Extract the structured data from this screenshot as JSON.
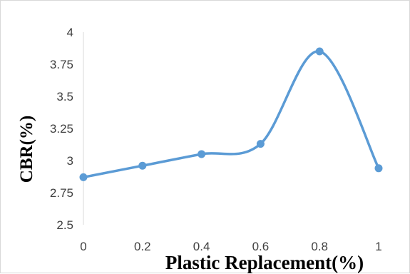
{
  "chart_data": {
    "type": "line",
    "smooth": true,
    "title": "",
    "xlabel": "Plastic Replacement(%)",
    "ylabel": "CBR(%)",
    "x": [
      0,
      0.2,
      0.4,
      0.6,
      0.8,
      1
    ],
    "x_tick_labels": [
      "0",
      "0.2",
      "0.4",
      "0.6",
      "0.8",
      "1"
    ],
    "xlim": [
      0,
      1
    ],
    "y_tick_labels": [
      "2.5",
      "2.75",
      "3",
      "3.25",
      "3.5",
      "3.75",
      "4"
    ],
    "ylim": [
      2.5,
      4
    ],
    "y_ticks": [
      2.5,
      2.75,
      3,
      3.25,
      3.5,
      3.75,
      4
    ],
    "grid": false,
    "legend": "none",
    "series": [
      {
        "values": [
          2.87,
          2.96,
          3.05,
          3.13,
          3.85,
          2.94
        ],
        "color": "#5b9bd5"
      }
    ]
  }
}
